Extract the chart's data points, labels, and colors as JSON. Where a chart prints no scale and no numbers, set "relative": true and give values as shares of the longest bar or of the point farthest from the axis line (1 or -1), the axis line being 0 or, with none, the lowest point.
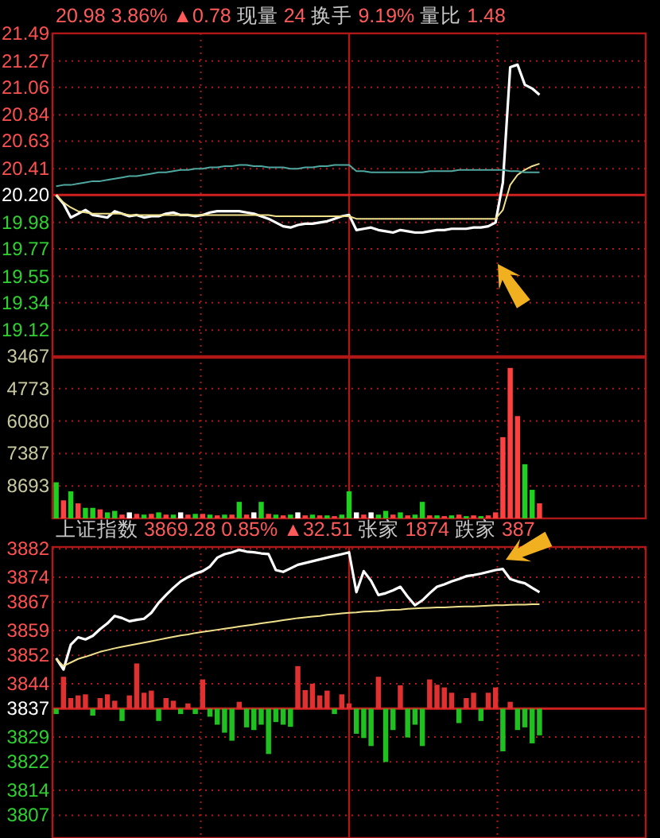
{
  "chart_data": [
    {
      "type": "line",
      "title": "20.98 3.86% ▲0.78 现量 24 换手 9.19% 量比 1.48",
      "categories": [
        null,
        null,
        null,
        null,
        null,
        null,
        null,
        null,
        null,
        null,
        null,
        null,
        null,
        null,
        null,
        null,
        null,
        null,
        null,
        null,
        null,
        null,
        null,
        null,
        null,
        null,
        null,
        null,
        null,
        null,
        null,
        null,
        null,
        null,
        null,
        null,
        null,
        null,
        null,
        null,
        null,
        null,
        null,
        null,
        null,
        null,
        null,
        null,
        null,
        null,
        null,
        null,
        null,
        null,
        null,
        null,
        null,
        null,
        null,
        null,
        null,
        null,
        null,
        null,
        null,
        null,
        null,
        null,
        null,
        null,
        null,
        null,
        null,
        null,
        null,
        null,
        null,
        null,
        null,
        null,
        null
      ],
      "series": [
        {
          "color": "#ffffff",
          "values": [
            20.2,
            20.13,
            20.02,
            20.05,
            20.08,
            20.04,
            20.03,
            20.02,
            20.07,
            20.05,
            20.03,
            20.04,
            20.02,
            20.03,
            20.03,
            20.05,
            20.06,
            20.04,
            20.04,
            20.03,
            20.04,
            20.06,
            20.07,
            20.07,
            20.07,
            20.07,
            20.06,
            20.05,
            20.03,
            20.01,
            19.98,
            19.95,
            19.94,
            19.96,
            19.97,
            19.97,
            19.98,
            19.99,
            20.01,
            20.03,
            20.04,
            19.92,
            19.93,
            19.94,
            19.92,
            19.91,
            19.9,
            19.92,
            19.91,
            19.9,
            19.9,
            19.91,
            19.92,
            19.92,
            19.93,
            19.93,
            19.93,
            19.94,
            19.94,
            19.95,
            19.98,
            20.3,
            21.22,
            21.24,
            21.08,
            21.05,
            21.0,
            null,
            null,
            null,
            null,
            null,
            null,
            null,
            null,
            null,
            null,
            null,
            null,
            null,
            null
          ]
        },
        {
          "color": "#f0e08c",
          "values": [
            20.2,
            20.14,
            20.1,
            20.07,
            20.06,
            20.05,
            20.05,
            20.05,
            20.05,
            20.05,
            20.04,
            20.04,
            20.04,
            20.04,
            20.04,
            20.04,
            20.04,
            20.04,
            20.04,
            20.04,
            20.04,
            20.04,
            20.04,
            20.04,
            20.04,
            20.04,
            20.04,
            20.04,
            20.04,
            20.04,
            20.03,
            20.03,
            20.03,
            20.03,
            20.03,
            20.03,
            20.03,
            20.03,
            20.03,
            20.03,
            20.03,
            20.01,
            20.01,
            20.01,
            20.01,
            20.01,
            20.01,
            20.01,
            20.01,
            20.01,
            20.01,
            20.01,
            20.01,
            20.01,
            20.01,
            20.01,
            20.01,
            20.01,
            20.01,
            20.01,
            20.01,
            20.08,
            20.28,
            20.36,
            20.4,
            20.43,
            20.45,
            null,
            null,
            null,
            null,
            null,
            null,
            null,
            null,
            null,
            null,
            null,
            null,
            null,
            null
          ]
        },
        {
          "color": "#4fa8a0",
          "values": [
            20.27,
            20.28,
            20.28,
            20.29,
            20.3,
            20.31,
            20.31,
            20.32,
            20.33,
            20.34,
            20.35,
            20.35,
            20.36,
            20.37,
            20.38,
            20.38,
            20.39,
            20.4,
            20.4,
            20.41,
            20.41,
            20.42,
            20.42,
            20.43,
            20.43,
            20.44,
            20.44,
            20.43,
            20.43,
            20.42,
            20.42,
            20.42,
            20.41,
            20.41,
            20.42,
            20.42,
            20.43,
            20.43,
            20.44,
            20.44,
            20.44,
            20.39,
            20.39,
            20.38,
            20.38,
            20.38,
            20.38,
            20.38,
            20.38,
            20.38,
            20.38,
            20.39,
            20.39,
            20.39,
            20.39,
            20.4,
            20.4,
            20.4,
            20.4,
            20.4,
            20.4,
            20.4,
            20.39,
            20.39,
            20.38,
            20.38,
            20.38,
            null,
            null,
            null,
            null,
            null,
            null,
            null,
            null,
            null,
            null,
            null,
            null,
            null,
            null
          ]
        }
      ],
      "ylim": [
        18.9,
        21.49
      ],
      "yticks": [
        21.49,
        21.27,
        21.06,
        20.84,
        20.63,
        20.41,
        {
          "value": 20.2,
          "label": "20.20"
        },
        19.98,
        19.77,
        19.55,
        19.34,
        19.12
      ],
      "grid": true,
      "tick_labels": "y",
      "marker": "none",
      "line_style": "solid",
      "ref_lines": [
        {
          "axis": "y",
          "value": 20.2,
          "color": "#d02020"
        }
      ]
    },
    {
      "type": "bar",
      "relative": true,
      "annotations": [
        "3467",
        "4773",
        "6080",
        "7387",
        "8693"
      ],
      "categories": [
        null,
        null,
        null,
        null,
        null,
        null,
        null,
        null,
        null,
        null,
        null,
        null,
        null,
        null,
        null,
        null,
        null,
        null,
        null,
        null,
        null,
        null,
        null,
        null,
        null,
        null,
        null,
        null,
        null,
        null,
        null,
        null,
        null,
        null,
        null,
        null,
        null,
        null,
        null,
        null,
        null,
        null,
        null,
        null,
        null,
        null,
        null,
        null,
        null,
        null,
        null,
        null,
        null,
        null,
        null,
        null,
        null,
        null,
        null,
        null,
        null,
        null,
        null,
        null,
        null,
        null,
        null,
        null,
        null,
        null,
        null,
        null,
        null,
        null,
        null,
        null,
        null,
        null,
        null,
        null,
        null
      ],
      "values": [
        0.24,
        0.12,
        0.18,
        0.1,
        0.07,
        0.07,
        0.06,
        0.04,
        0.05,
        0.025,
        0.04,
        0.03,
        0.025,
        0.03,
        0.04,
        0.025,
        0.025,
        0.04,
        0.025,
        0.03,
        0.03,
        0.025,
        0.02,
        0.025,
        0.025,
        0.11,
        0.025,
        0.04,
        0.11,
        0.03,
        0.025,
        0.02,
        0.025,
        0.04,
        0.02,
        0.025,
        0.02,
        0.02,
        0.015,
        0.025,
        0.18,
        0.04,
        0.025,
        0.04,
        0.025,
        0.05,
        0.025,
        0.04,
        0.02,
        0.025,
        0.11,
        0.02,
        0.02,
        0.015,
        0.02,
        0.025,
        0.015,
        0.02,
        0.015,
        0.02,
        0.04,
        0.54,
        1,
        0.68,
        0.36,
        0.19,
        0.1,
        null,
        null,
        null,
        null,
        null,
        null,
        null,
        null,
        null,
        null,
        null,
        null,
        null,
        null
      ],
      "colors": [
        "#20d020",
        "#ff4040",
        "#20d020",
        "#ff4040",
        "#20d020",
        "#20d020",
        "#ff4040",
        "#20d020",
        "#20d020",
        "#ff4040",
        "#ffffff",
        "#ff4040",
        "#20d020",
        "#ff4040",
        "#20d020",
        "#ff4040",
        "#20d020",
        "#ffffff",
        "#ff4040",
        "#20d020",
        "#ff4040",
        "#20d020",
        "#ff4040",
        "#20d020",
        "#ff4040",
        "#20d020",
        "#ff4040",
        "#ffffff",
        "#20d020",
        "#ff4040",
        "#20d020",
        "#ff4040",
        "#20d020",
        "#ffffff",
        "#ff4040",
        "#20d020",
        "#ff4040",
        "#20d020",
        "#ff4040",
        "#20d020",
        "#20d020",
        "#ffffff",
        "#ff4040",
        "#ffffff",
        "#20d020",
        "#20d020",
        "#ff4040",
        "#20d020",
        "#ff4040",
        "#20d020",
        "#20d020",
        "#ff4040",
        "#20d020",
        "#ff4040",
        "#20d020",
        "#ff4040",
        "#20d020",
        "#ff4040",
        "#20d020",
        "#ff4040",
        "#ff4040",
        "#ff4040",
        "#ff4040",
        "#ff4040",
        "#20d020",
        "#20d020",
        "#ff4040",
        null,
        null,
        null,
        null,
        null,
        null,
        null,
        null,
        null,
        null,
        null,
        null,
        null,
        null
      ],
      "grid": true,
      "tick_labels": false
    },
    {
      "type": "line",
      "title": "上证指数 3869.28 0.85% ▲32.51 张家 1874 跌家 387",
      "categories": [
        null,
        null,
        null,
        null,
        null,
        null,
        null,
        null,
        null,
        null,
        null,
        null,
        null,
        null,
        null,
        null,
        null,
        null,
        null,
        null,
        null,
        null,
        null,
        null,
        null,
        null,
        null,
        null,
        null,
        null,
        null,
        null,
        null,
        null,
        null,
        null,
        null,
        null,
        null,
        null,
        null,
        null,
        null,
        null,
        null,
        null,
        null,
        null,
        null,
        null,
        null,
        null,
        null,
        null,
        null,
        null,
        null,
        null,
        null,
        null,
        null,
        null,
        null,
        null,
        null,
        null,
        null,
        null,
        null,
        null,
        null,
        null,
        null,
        null,
        null,
        null,
        null,
        null,
        null,
        null,
        null
      ],
      "series": [
        {
          "color": "#ffffff",
          "values": [
            3851.2,
            3848,
            3855,
            3857.1,
            3856.5,
            3857.5,
            3859.4,
            3861,
            3863.1,
            3862.5,
            3861.6,
            3862,
            3862.3,
            3864,
            3866.8,
            3869,
            3871,
            3872.8,
            3874,
            3875,
            3875.7,
            3877,
            3879.5,
            3880.5,
            3881,
            3881.7,
            3881.2,
            3881,
            3880.7,
            3880.5,
            3876,
            3875.5,
            3876.5,
            3877.5,
            3878,
            3878.5,
            3879,
            3879.5,
            3880,
            3880.5,
            3881,
            3869.8,
            3875.7,
            3873,
            3869,
            3869.5,
            3870.3,
            3871.3,
            3868.5,
            3866.1,
            3867.5,
            3869.5,
            3871.3,
            3872,
            3872.8,
            3873.5,
            3874.3,
            3874.6,
            3875,
            3875.5,
            3876,
            3876.3,
            3873.5,
            3872.8,
            3872.3,
            3871,
            3869.8,
            null,
            null,
            null,
            null,
            null,
            null,
            null,
            null,
            null,
            null,
            null,
            null,
            null,
            null
          ]
        },
        {
          "color": "#f0e08c",
          "values": [
            3851,
            3849,
            3850,
            3851,
            3851.6,
            3852.3,
            3853,
            3853.5,
            3854,
            3854.4,
            3854.8,
            3855.2,
            3855.6,
            3856,
            3856.4,
            3856.8,
            3857.2,
            3857.6,
            3857.9,
            3858.3,
            3858.6,
            3858.9,
            3859.2,
            3859.5,
            3859.8,
            3860.1,
            3860.4,
            3860.7,
            3861,
            3861.3,
            3861.6,
            3861.9,
            3862.2,
            3862.5,
            3862.7,
            3862.9,
            3863.1,
            3863.4,
            3863.6,
            3863.8,
            3864,
            3864.1,
            3864.3,
            3864.4,
            3864.5,
            3864.7,
            3864.8,
            3864.9,
            3865.1,
            3865.2,
            3865.3,
            3865.4,
            3865.5,
            3865.5,
            3865.6,
            3865.7,
            3865.8,
            3865.8,
            3865.9,
            3866,
            3866.1,
            3866.1,
            3866.2,
            3866.3,
            3866.3,
            3866.4,
            3866.4,
            null,
            null,
            null,
            null,
            null,
            null,
            null,
            null,
            null,
            null,
            null,
            null,
            null,
            null
          ]
        }
      ],
      "ylim": [
        3800.6,
        3882.5
      ],
      "yticks": [
        3882,
        3874,
        3867,
        3859,
        3852,
        3844,
        3837,
        3829,
        3822,
        3814,
        3807
      ],
      "grid": true,
      "tick_labels": "y",
      "marker": "none",
      "line_style": "solid",
      "ref_lines": [
        {
          "axis": "y",
          "value": 3837,
          "color": "#d02020"
        }
      ]
    },
    {
      "type": "bar",
      "relative": true,
      "tick_labels": false,
      "categories": [
        null,
        null,
        null,
        null,
        null,
        null,
        null,
        null,
        null,
        null,
        null,
        null,
        null,
        null,
        null,
        null,
        null,
        null,
        null,
        null,
        null,
        null,
        null,
        null,
        null,
        null,
        null,
        null,
        null,
        null,
        null,
        null,
        null,
        null,
        null,
        null,
        null,
        null,
        null,
        null,
        null,
        null,
        null,
        null,
        null,
        null,
        null,
        null,
        null,
        null,
        null,
        null,
        null,
        null,
        null,
        null,
        null,
        null,
        null,
        null,
        null,
        null,
        null,
        null,
        null,
        null,
        null,
        null,
        null,
        null,
        null,
        null,
        null,
        null,
        null,
        null,
        null,
        null,
        null,
        null,
        null
      ],
      "values": [
        -0.1,
        0.6,
        0.2,
        0.25,
        0.27,
        -0.13,
        0.2,
        0.27,
        0.15,
        -0.23,
        0.25,
        0.85,
        0.3,
        0.34,
        -0.23,
        0.2,
        0.15,
        -0.1,
        0.1,
        -0.1,
        0.55,
        -0.15,
        -0.3,
        -0.45,
        -0.6,
        0.13,
        -0.35,
        -0.4,
        -0.3,
        -0.85,
        -0.25,
        -0.3,
        -0.34,
        0.8,
        0.35,
        0.47,
        0.25,
        0.34,
        -0.1,
        0.27,
        0.1,
        -0.47,
        -0.55,
        -0.7,
        0.6,
        -1,
        -0.4,
        0.44,
        -0.54,
        -0.3,
        -0.7,
        0.55,
        0.45,
        0.4,
        0.3,
        -0.27,
        0.2,
        0.3,
        -0.23,
        0.3,
        0.4,
        -0.8,
        0.13,
        -0.4,
        -0.35,
        -0.65,
        -0.5,
        null,
        null,
        null,
        null,
        null,
        null,
        null,
        null,
        null,
        null,
        null,
        null,
        null,
        null
      ],
      "colors": [
        "#20c020",
        "#e03030",
        "#e03030",
        "#e03030",
        "#e03030",
        "#20c020",
        "#e03030",
        "#e03030",
        "#e03030",
        "#20c020",
        "#e03030",
        "#e03030",
        "#e03030",
        "#e03030",
        "#20c020",
        "#e03030",
        "#e03030",
        "#20c020",
        "#e03030",
        "#20c020",
        "#e03030",
        "#20c020",
        "#20c020",
        "#20c020",
        "#20c020",
        "#e03030",
        "#20c020",
        "#20c020",
        "#20c020",
        "#20c020",
        "#20c020",
        "#20c020",
        "#20c020",
        "#e03030",
        "#e03030",
        "#e03030",
        "#e03030",
        "#e03030",
        "#20c020",
        "#e03030",
        "#e03030",
        "#20c020",
        "#20c020",
        "#20c020",
        "#e03030",
        "#20c020",
        "#20c020",
        "#e03030",
        "#20c020",
        "#20c020",
        "#20c020",
        "#e03030",
        "#e03030",
        "#e03030",
        "#e03030",
        "#20c020",
        "#e03030",
        "#e03030",
        "#20c020",
        "#e03030",
        "#e03030",
        "#20c020",
        "#e03030",
        "#20c020",
        "#20c020",
        "#20c020",
        "#20c020",
        null,
        null,
        null,
        null,
        null,
        null,
        null,
        null,
        null,
        null,
        null,
        null,
        null,
        null
      ]
    }
  ]
}
